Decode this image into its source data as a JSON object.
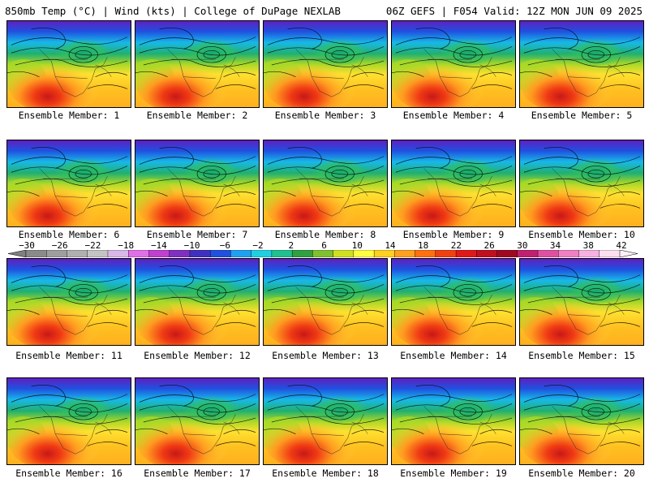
{
  "header": {
    "title_left": "850mb Temp (°C) | Wind (kts) | College of DuPage NEXLAB",
    "title_right": "06Z GEFS | F054 Valid: 12Z MON JUN 09 2025"
  },
  "panels": [
    {
      "label": "Ensemble Member: 1"
    },
    {
      "label": "Ensemble Member: 2"
    },
    {
      "label": "Ensemble Member: 3"
    },
    {
      "label": "Ensemble Member: 4"
    },
    {
      "label": "Ensemble Member: 5"
    },
    {
      "label": "Ensemble Member: 6"
    },
    {
      "label": "Ensemble Member: 7"
    },
    {
      "label": "Ensemble Member: 8"
    },
    {
      "label": "Ensemble Member: 9"
    },
    {
      "label": "Ensemble Member: 10"
    },
    {
      "label": "Ensemble Member: 11"
    },
    {
      "label": "Ensemble Member: 12"
    },
    {
      "label": "Ensemble Member: 13"
    },
    {
      "label": "Ensemble Member: 14"
    },
    {
      "label": "Ensemble Member: 15"
    },
    {
      "label": "Ensemble Member: 16"
    },
    {
      "label": "Ensemble Member: 17"
    },
    {
      "label": "Ensemble Member: 18"
    },
    {
      "label": "Ensemble Member: 19"
    },
    {
      "label": "Ensemble Member: 20"
    }
  ],
  "colorbar": {
    "labels": [
      "−30",
      "−26",
      "−22",
      "−18",
      "−14",
      "−10",
      "−6",
      "−2",
      "2",
      "6",
      "10",
      "14",
      "18",
      "22",
      "26",
      "30",
      "34",
      "38",
      "42"
    ],
    "colors": [
      "#8a8a8a",
      "#9e9e9e",
      "#b0b0b0",
      "#c4c4c4",
      "#d8b8e8",
      "#e070e8",
      "#c040d0",
      "#8030c0",
      "#4030c0",
      "#2050e0",
      "#20a0f0",
      "#20d0e0",
      "#20c090",
      "#30a040",
      "#80c030",
      "#d0e020",
      "#ffff40",
      "#ffd020",
      "#ffa020",
      "#ff7010",
      "#f04010",
      "#e01818",
      "#c01020",
      "#a00820",
      "#c02070",
      "#e050a0",
      "#f080c0",
      "#f8b0e0",
      "#fce0f0"
    ]
  }
}
